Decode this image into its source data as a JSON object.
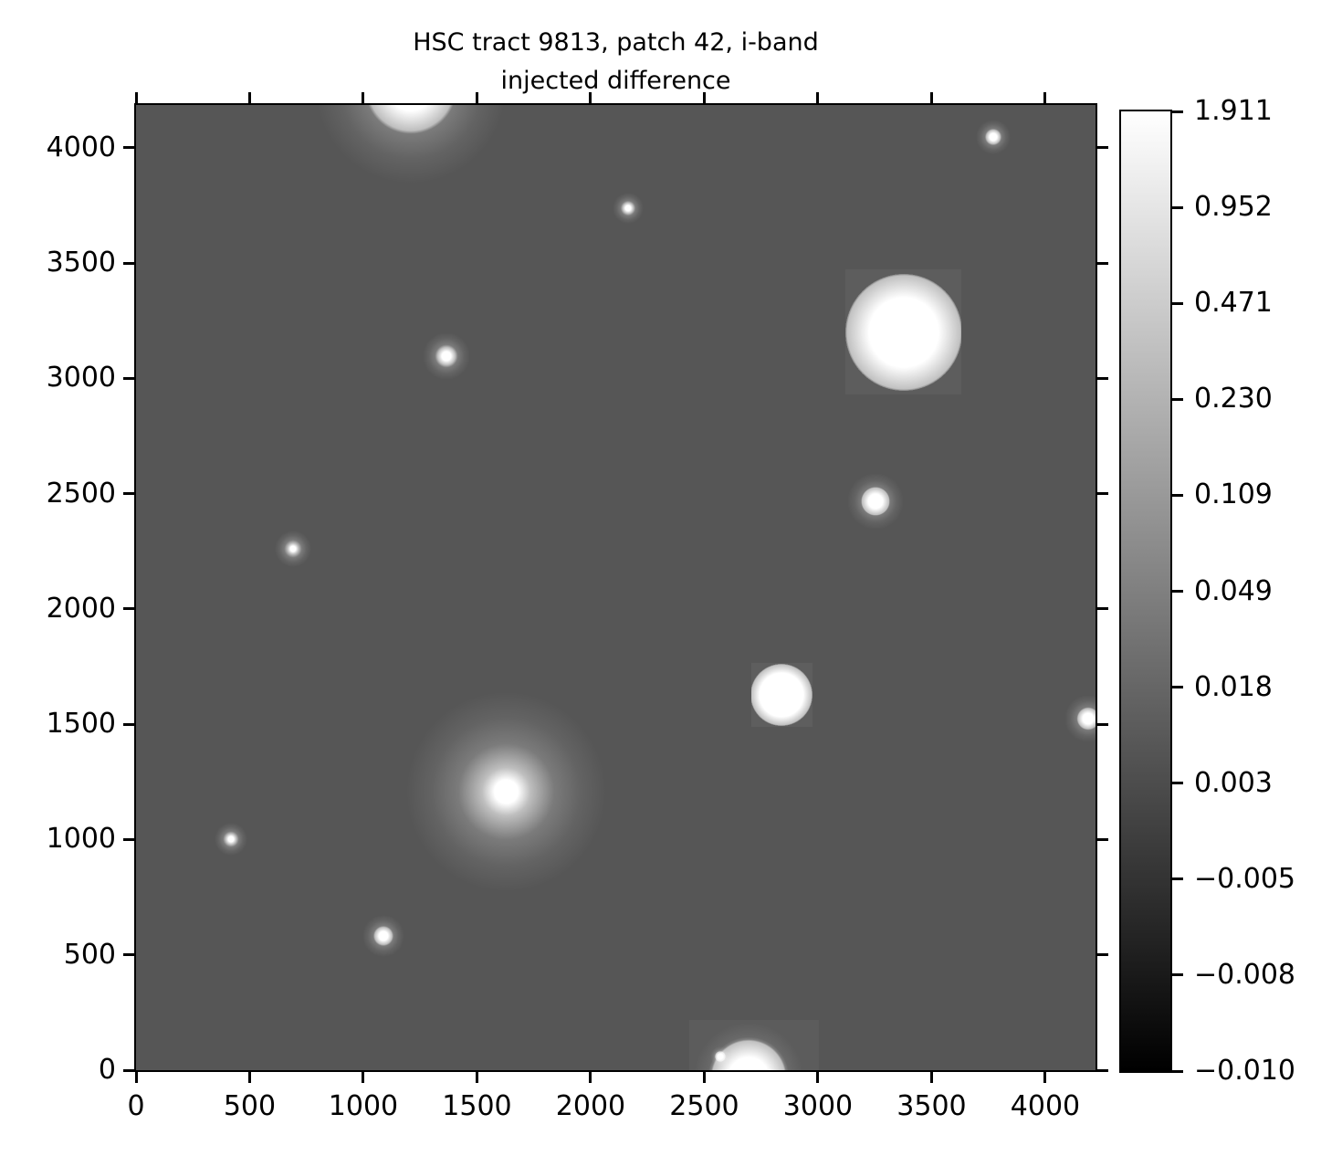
{
  "title": {
    "line1": "HSC tract 9813, patch 42, i-band",
    "line2": "injected difference"
  },
  "chart_data": {
    "type": "heatmap",
    "title": "HSC tract 9813, patch 42, i-band\ninjected difference",
    "xlabel": "",
    "ylabel": "",
    "xlim": [
      0,
      4221
    ],
    "ylim": [
      0,
      4186
    ],
    "x_ticks": [
      0,
      500,
      1000,
      1500,
      2000,
      2500,
      3000,
      3500,
      4000
    ],
    "y_ticks": [
      0,
      500,
      1000,
      1500,
      2000,
      2500,
      3000,
      3500,
      4000
    ],
    "grid": false,
    "background_value": 0.003,
    "background_color": "#565656",
    "colormap": "grays",
    "colorbar": {
      "position": "right",
      "vmin": -0.01,
      "vmax": 1.911,
      "scale": "asinh-like (ticks evenly spaced)",
      "tick_labels": [
        "1.911",
        "0.952",
        "0.471",
        "0.230",
        "0.109",
        "0.049",
        "0.018",
        "0.003",
        "−0.005",
        "−0.008",
        "−0.010"
      ],
      "top_color": "#ffffff",
      "bottom_color": "#000000"
    },
    "sources": [
      {
        "x": 1209,
        "y": 4260,
        "core_r": 100,
        "halo_r": 420
      },
      {
        "x": 2165,
        "y": 3739,
        "core_r": 12,
        "halo_r": 68
      },
      {
        "x": 3771,
        "y": 4048,
        "core_r": 16,
        "halo_r": 76
      },
      {
        "x": 1365,
        "y": 3097,
        "core_r": 20,
        "halo_r": 104
      },
      {
        "x": 3377,
        "y": 3200,
        "core_r": 152,
        "halo_r": 256,
        "square": [
          3120,
          2931,
          3631,
          3473
        ],
        "square_alpha": 0.045
      },
      {
        "x": 3253,
        "y": 2467,
        "core_r": 32,
        "halo_r": 124
      },
      {
        "x": 691,
        "y": 2261,
        "core_r": 12,
        "halo_r": 80
      },
      {
        "x": 2839,
        "y": 1628,
        "core_r": 96,
        "halo_r": 136,
        "square": [
          2707,
          1489,
          2976,
          1766
        ],
        "square_alpha": 0.05
      },
      {
        "x": 4189,
        "y": 1525,
        "core_r": 24,
        "halo_r": 104
      },
      {
        "x": 1628,
        "y": 1208,
        "core_r": 52,
        "halo_r": 440
      },
      {
        "x": 418,
        "y": 1002,
        "core_r": 12,
        "halo_r": 72
      },
      {
        "x": 1088,
        "y": 582,
        "core_r": 20,
        "halo_r": 92
      },
      {
        "x": 2695,
        "y": -32,
        "core_r": 88,
        "halo_r": 240,
        "square": [
          2434,
          0,
          3004,
          218
        ],
        "square_alpha": 0.04
      },
      {
        "x": 2570,
        "y": 59,
        "core_r": 12,
        "halo_r": 44,
        "square": [
          2434,
          0,
          3004,
          218
        ],
        "square_alpha": 0
      }
    ]
  }
}
